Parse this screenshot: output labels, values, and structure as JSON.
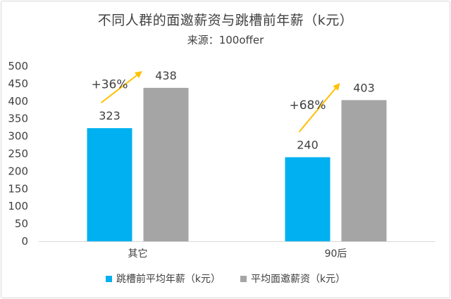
{
  "chart_data": {
    "type": "bar",
    "title": "不同人群的面邀薪资与跳槽前年薪（k元）",
    "subtitle": "来源：100offer",
    "categories": [
      "其它",
      "90后"
    ],
    "series": [
      {
        "name": "跳槽前平均年薪（k元）",
        "values": [
          323,
          240
        ],
        "color": "#00b0f0"
      },
      {
        "name": "平均面邀薪资（k元）",
        "values": [
          438,
          403
        ],
        "color": "#a5a5a5"
      }
    ],
    "data_labels": [
      "323",
      "240",
      "438",
      "403"
    ],
    "annotations": [
      "+36%",
      "+68%"
    ],
    "annotation_color": "#ffc000",
    "ylim": [
      0,
      500
    ],
    "yticks": [
      "0",
      "50",
      "100",
      "150",
      "200",
      "250",
      "300",
      "350",
      "400",
      "450",
      "500"
    ],
    "grid": false,
    "legend_position": "bottom"
  }
}
